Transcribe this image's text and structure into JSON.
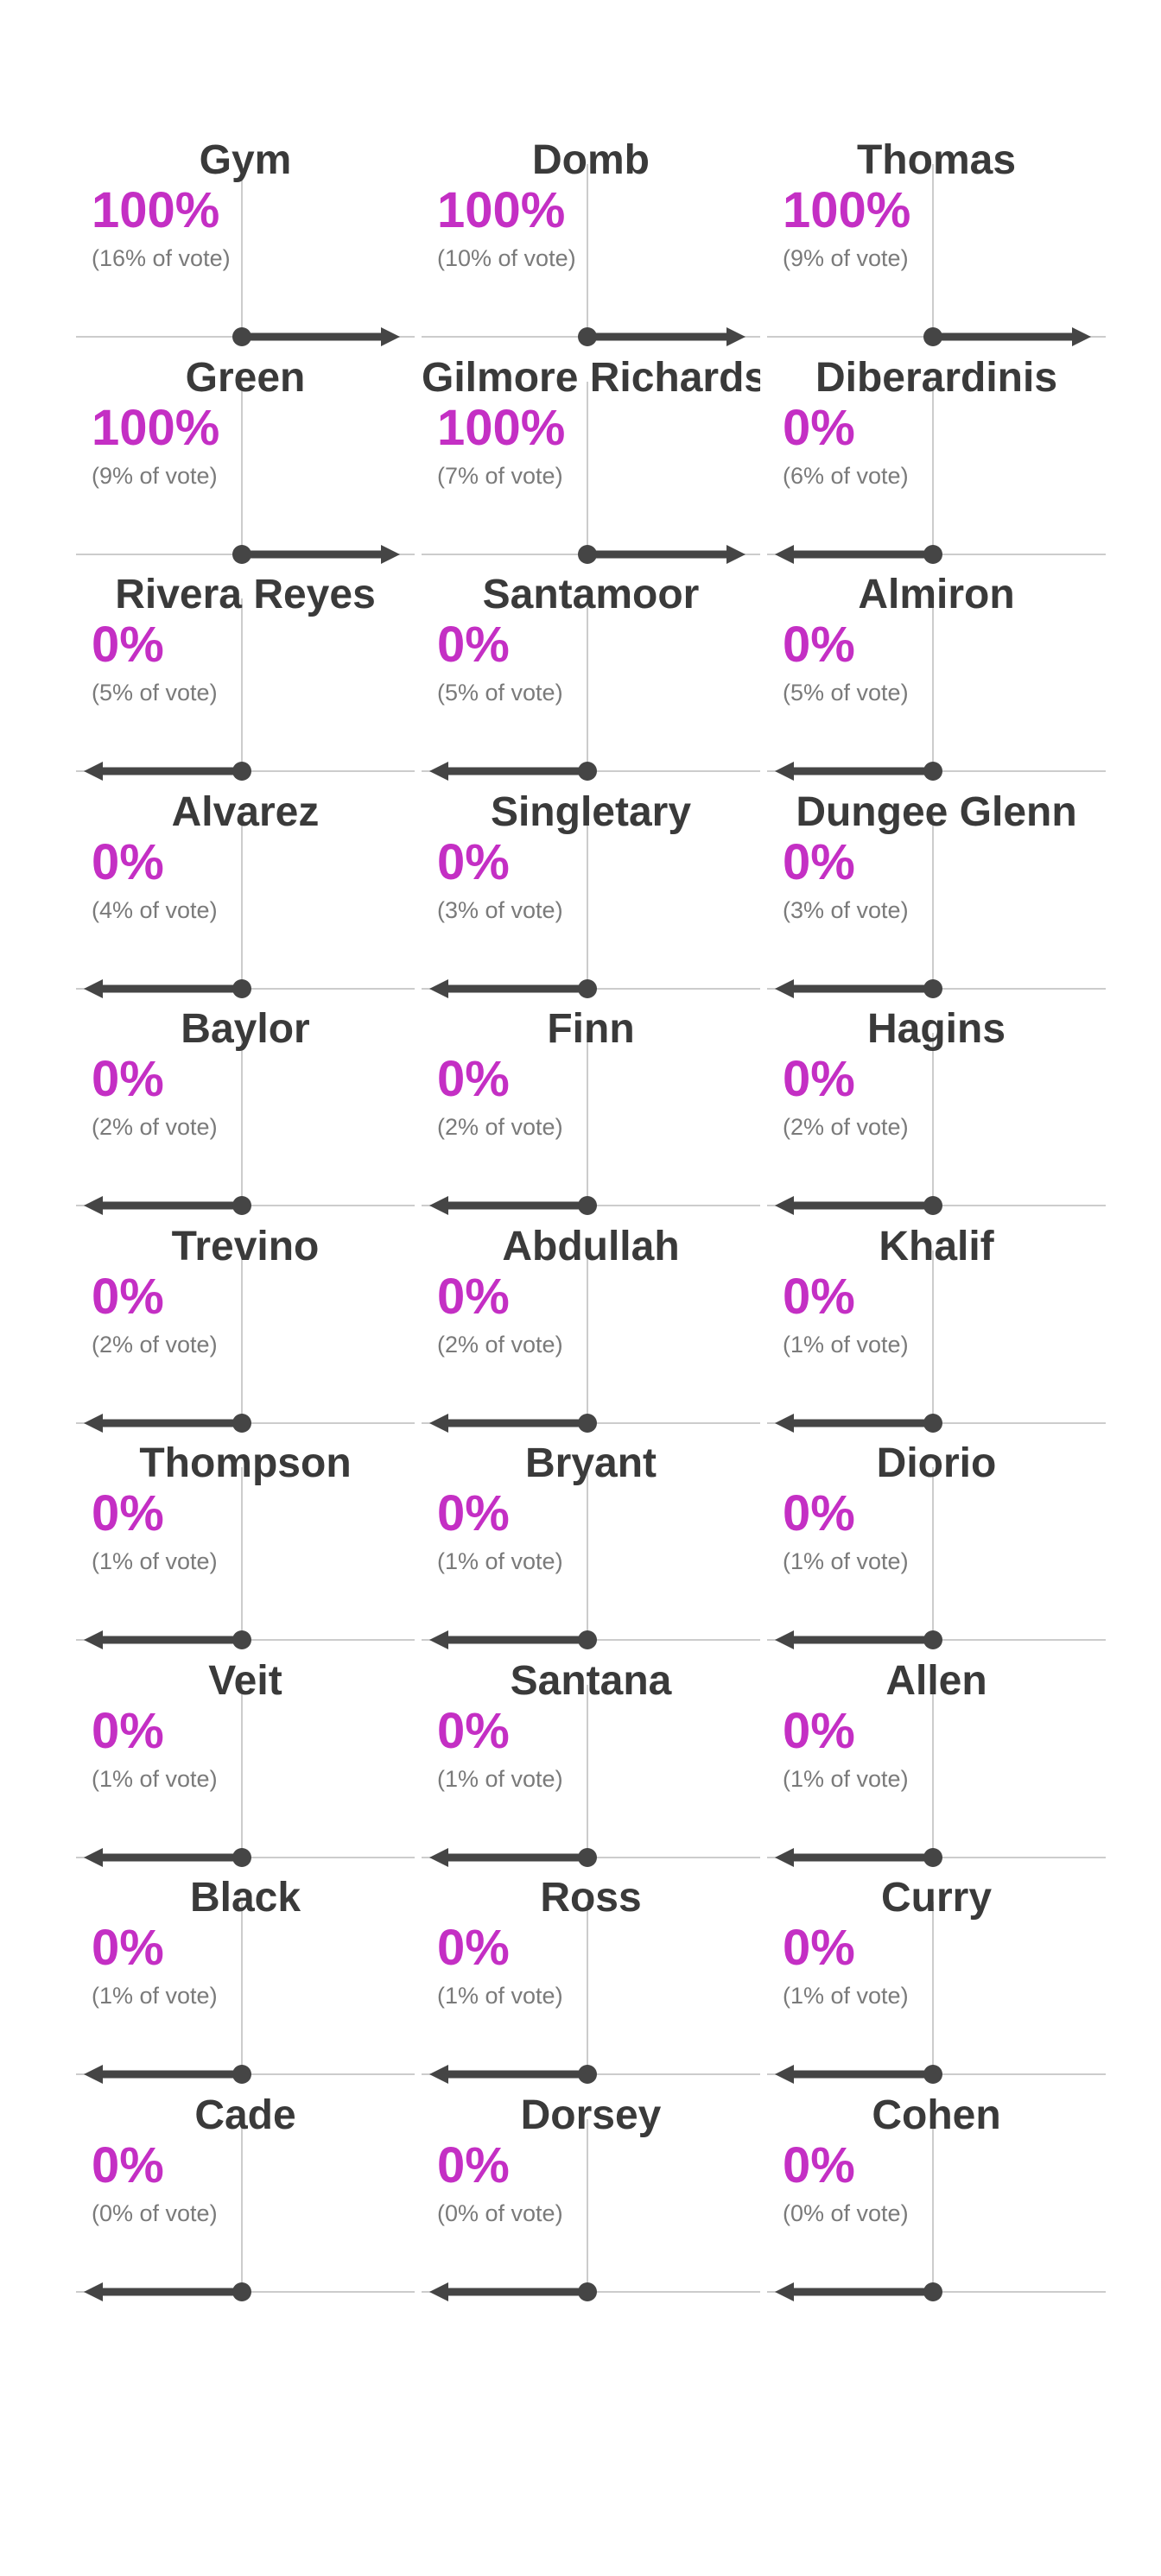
{
  "colors": {
    "accent": "#c42fc4",
    "arrow": "#454545",
    "name_text": "#3a3a3a",
    "share_text": "#7a7a7a",
    "gridline": "#cccccc"
  },
  "chart_data": {
    "type": "small-multiples-arrow",
    "columns": 3,
    "panels": [
      {
        "name": "Gym",
        "pct": "100%",
        "share": "(16% of vote)",
        "value": 100
      },
      {
        "name": "Domb",
        "pct": "100%",
        "share": "(10% of vote)",
        "value": 100
      },
      {
        "name": "Thomas",
        "pct": "100%",
        "share": "(9% of vote)",
        "value": 100
      },
      {
        "name": "Green",
        "pct": "100%",
        "share": "(9% of vote)",
        "value": 100
      },
      {
        "name": "Gilmore Richardson",
        "pct": "100%",
        "share": "(7% of vote)",
        "value": 100
      },
      {
        "name": "Diberardinis",
        "pct": "0%",
        "share": "(6% of vote)",
        "value": 0
      },
      {
        "name": "Rivera Reyes",
        "pct": "0%",
        "share": "(5% of vote)",
        "value": 0
      },
      {
        "name": "Santamoor",
        "pct": "0%",
        "share": "(5% of vote)",
        "value": 0
      },
      {
        "name": "Almiron",
        "pct": "0%",
        "share": "(5% of vote)",
        "value": 0
      },
      {
        "name": "Alvarez",
        "pct": "0%",
        "share": "(4% of vote)",
        "value": 0
      },
      {
        "name": "Singletary",
        "pct": "0%",
        "share": "(3% of vote)",
        "value": 0
      },
      {
        "name": "Dungee Glenn",
        "pct": "0%",
        "share": "(3% of vote)",
        "value": 0
      },
      {
        "name": "Baylor",
        "pct": "0%",
        "share": "(2% of vote)",
        "value": 0
      },
      {
        "name": "Finn",
        "pct": "0%",
        "share": "(2% of vote)",
        "value": 0
      },
      {
        "name": "Hagins",
        "pct": "0%",
        "share": "(2% of vote)",
        "value": 0
      },
      {
        "name": "Trevino",
        "pct": "0%",
        "share": "(2% of vote)",
        "value": 0
      },
      {
        "name": "Abdullah",
        "pct": "0%",
        "share": "(2% of vote)",
        "value": 0
      },
      {
        "name": "Khalif",
        "pct": "0%",
        "share": "(1% of vote)",
        "value": 0
      },
      {
        "name": "Thompson",
        "pct": "0%",
        "share": "(1% of vote)",
        "value": 0
      },
      {
        "name": "Bryant",
        "pct": "0%",
        "share": "(1% of vote)",
        "value": 0
      },
      {
        "name": "Diorio",
        "pct": "0%",
        "share": "(1% of vote)",
        "value": 0
      },
      {
        "name": "Veit",
        "pct": "0%",
        "share": "(1% of vote)",
        "value": 0
      },
      {
        "name": "Santana",
        "pct": "0%",
        "share": "(1% of vote)",
        "value": 0
      },
      {
        "name": "Allen",
        "pct": "0%",
        "share": "(1% of vote)",
        "value": 0
      },
      {
        "name": "Black",
        "pct": "0%",
        "share": "(1% of vote)",
        "value": 0
      },
      {
        "name": "Ross",
        "pct": "0%",
        "share": "(1% of vote)",
        "value": 0
      },
      {
        "name": "Curry",
        "pct": "0%",
        "share": "(1% of vote)",
        "value": 0
      },
      {
        "name": "Cade",
        "pct": "0%",
        "share": "(0% of vote)",
        "value": 0
      },
      {
        "name": "Dorsey",
        "pct": "0%",
        "share": "(0% of vote)",
        "value": 0
      },
      {
        "name": "Cohen",
        "pct": "0%",
        "share": "(0% of vote)",
        "value": 0
      }
    ]
  }
}
